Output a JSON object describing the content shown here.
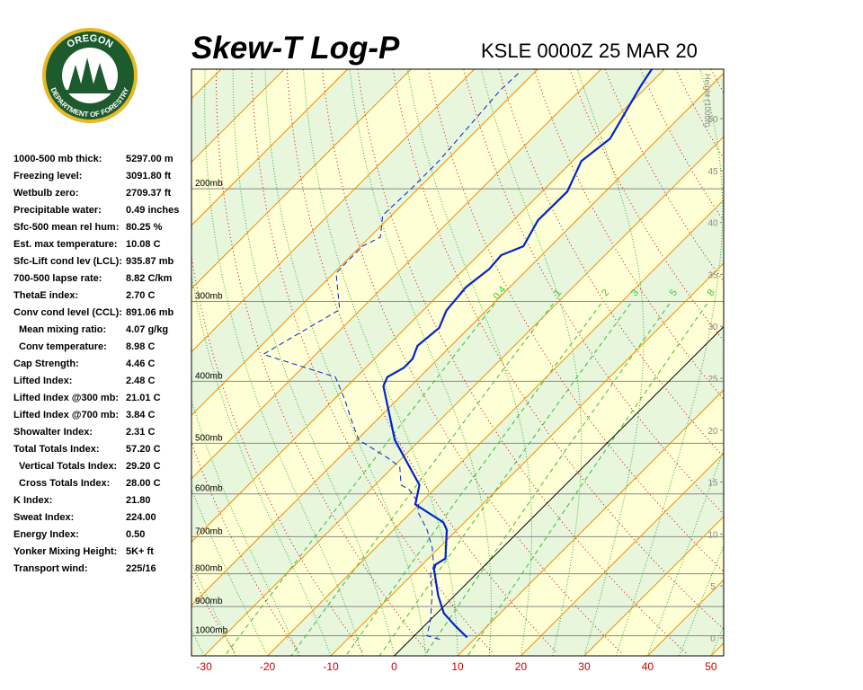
{
  "logo": {
    "top": "OREGON",
    "bottom": "DEPARTMENT OF FORESTRY"
  },
  "title": "Skew-T Log-P",
  "subtitle": "KSLE 0000Z 25 MAR 20",
  "stats": [
    [
      "1000-500 mb thick:",
      "5297.00 m"
    ],
    [
      "Freezing level:",
      "3091.80 ft"
    ],
    [
      "Wetbulb zero:",
      "2709.37 ft"
    ],
    [
      "Precipitable water:",
      "0.49 inches"
    ],
    [
      "Sfc-500 mean rel hum:",
      "80.25 %"
    ],
    [
      "Est. max temperature:",
      "10.08 C"
    ],
    [
      "Sfc-Lift cond lev (LCL):",
      "935.87 mb"
    ],
    [
      "700-500 lapse rate:",
      "8.82 C/km"
    ],
    [
      "ThetaE index:",
      "2.70 C"
    ],
    [
      "Conv cond level (CCL):",
      "891.06 mb"
    ],
    [
      "Mean mixing ratio:",
      "4.07 g/kg"
    ],
    [
      "Conv temperature:",
      "8.98 C"
    ],
    [
      "Cap Strength:",
      "4.46 C"
    ],
    [
      "Lifted Index:",
      "2.48 C"
    ],
    [
      "Lifted Index @300 mb:",
      "21.01 C"
    ],
    [
      "Lifted Index @700 mb:",
      "3.84 C"
    ],
    [
      "Showalter Index:",
      "2.31 C"
    ],
    [
      "Total Totals Index:",
      "57.20 C"
    ],
    [
      "Vertical Totals Index:",
      "29.20 C"
    ],
    [
      "Cross Totals Index:",
      "28.00 C"
    ],
    [
      "K Index:",
      "21.80"
    ],
    [
      "Sweat Index:",
      "224.00"
    ],
    [
      "Energy Index:",
      "0.50"
    ],
    [
      "Yonker Mixing Height:",
      "5K+ ft"
    ],
    [
      "Transport wind:",
      "225/16"
    ]
  ],
  "chart_data": {
    "type": "skewt",
    "xlim": [
      -32,
      52
    ],
    "xticks": [
      -30,
      -20,
      -10,
      0,
      10,
      20,
      30,
      40,
      50
    ],
    "ylim": [
      1075,
      130
    ],
    "log_scale": true,
    "yticks": [
      {
        "value": 1000,
        "label": "1000mb"
      },
      {
        "value": 900,
        "label": "900mb"
      },
      {
        "value": 800,
        "label": "800mb"
      },
      {
        "value": 700,
        "label": "700mb"
      },
      {
        "value": 600,
        "label": "600mb"
      },
      {
        "value": 500,
        "label": "500mb"
      },
      {
        "value": 400,
        "label": "400mb"
      },
      {
        "value": 300,
        "label": "300mb"
      },
      {
        "value": 200,
        "label": "200mb"
      }
    ],
    "height_label": "Height (1000ft)",
    "height_lim": [
      -1.73,
      54.76
    ],
    "height_ticks": [
      0,
      5,
      10,
      15,
      20,
      25,
      30,
      35,
      40,
      45,
      50
    ],
    "mixing_ratios": [
      0.4,
      1,
      2,
      3,
      5,
      8
    ],
    "series": [
      {
        "color": "#0022cc",
        "style": "solid",
        "pressure": [
          1006,
          965,
          922,
          865,
          787,
          774,
          757,
          683,
          665,
          623,
          581,
          494,
          407,
          394,
          381,
          369,
          352,
          330,
          310,
          285,
          267,
          254,
          246,
          224,
          202,
          181,
          167,
          154,
          138,
          130
        ],
        "values": [
          8.6,
          4.9,
          1.1,
          -2.6,
          -7.4,
          -7.9,
          -7.3,
          -11.6,
          -13.3,
          -20.6,
          -23.0,
          -34.0,
          -44.3,
          -45.1,
          -44.0,
          -44.0,
          -45.3,
          -44.7,
          -46.3,
          -46.9,
          -46.1,
          -46.4,
          -44.3,
          -46.1,
          -46.0,
          -48.6,
          -47.6,
          -49.1,
          -51.1,
          -52.0
        ]
      },
      {
        "color": "#0022cc",
        "style": "dashed",
        "pressure": [
          1013,
          1000,
          943,
          856,
          802,
          777,
          728,
          683,
          640,
          619,
          590,
          581,
          544,
          527,
          494,
          463,
          427,
          394,
          363,
          309,
          271,
          259,
          246,
          238,
          220,
          200,
          181,
          140,
          132
        ],
        "values": [
          4.6,
          2.0,
          0.0,
          -4.0,
          -7.1,
          -8.0,
          -11.1,
          -14.7,
          -19.0,
          -20.4,
          -24.0,
          -25.9,
          -29.0,
          -32.3,
          -39.7,
          -43.6,
          -48.3,
          -53.3,
          -68.3,
          -63.3,
          -69.6,
          -69.7,
          -69.7,
          -68.3,
          -71.4,
          -71.1,
          -71.1,
          -72.6,
          -72.4
        ]
      }
    ]
  }
}
